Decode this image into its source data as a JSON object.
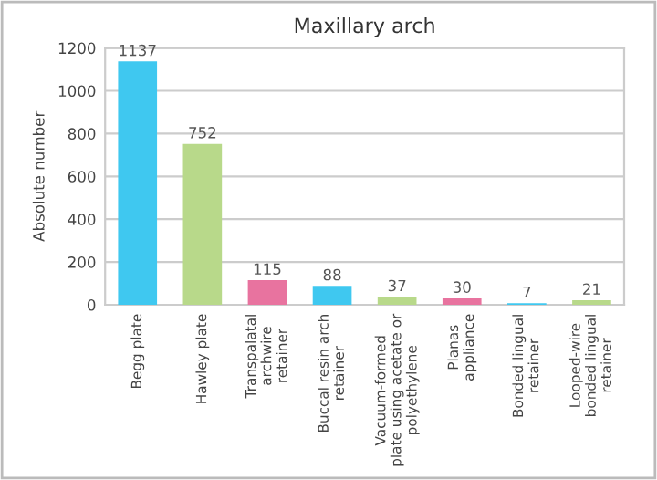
{
  "chart_data": {
    "type": "bar",
    "title": "Maxillary arch",
    "ylabel": "Absolute number",
    "categories": [
      "Begg plate",
      "Hawley plate",
      "Transpalatal\narchwire\nretainer",
      "Buccal resin arch\nretainer",
      "Vacuum-formed\nplate using acetate or\npolyethylene",
      "Planas\nappliance",
      "Bonded lingual\nretainer",
      "Looped-wire\nbonded lingual\nretainer"
    ],
    "values": [
      1137,
      752,
      115,
      88,
      37,
      30,
      7,
      21
    ],
    "colors": [
      "#3fc8f0",
      "#b8d98a",
      "#e8739f",
      "#3fc8f0",
      "#b8d98a",
      "#e8739f",
      "#3fc8f0",
      "#b8d98a"
    ],
    "ylim": [
      0,
      1200
    ],
    "yticks": [
      0,
      200,
      400,
      600,
      800,
      1000,
      1200
    ],
    "grid": "y",
    "data_labels": true
  }
}
